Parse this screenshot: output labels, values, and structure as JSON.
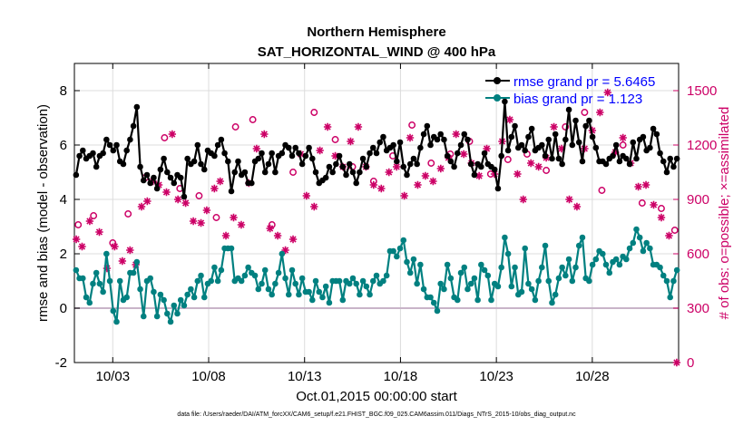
{
  "chart_data": {
    "type": "line",
    "title": "Northern Hemisphere",
    "subtitle": "SAT_HORIZONTAL_WIND @ 400 hPa",
    "xlabel": "Oct.01,2015 00:00:00 start",
    "ylabel": "rmse and bias (model - observation)",
    "y2label": "# of obs: o=possible; ×=assimilated",
    "footnote": "data file: /Users/raeder/DAI/ATM_forcXX/CAM6_setup/f.e21.FHIST_BGC.f09_025.CAM6assim.011/Diags_NTrS_2015-10/obs_diag_output.nc",
    "xlim": [
      1,
      32.5
    ],
    "ylim": [
      -2,
      9
    ],
    "y2lim": [
      0,
      1650
    ],
    "x_ticks": [
      3,
      8,
      13,
      18,
      23,
      28
    ],
    "x_tick_labels": [
      "10/03",
      "10/08",
      "10/13",
      "10/18",
      "10/23",
      "10/28"
    ],
    "y_ticks": [
      -2,
      0,
      2,
      4,
      6,
      8
    ],
    "y2_ticks": [
      0,
      300,
      600,
      900,
      1200,
      1500
    ],
    "legend_position": "top-right",
    "colors": {
      "rmse": "#000000",
      "bias": "#008080",
      "obs": "#cc0066",
      "legend_text": "#0000ff",
      "zero_line": "#c8b4c8"
    },
    "series": [
      {
        "name": "rmse grand pr = 5.6465",
        "axis": "left",
        "color": "#000000",
        "values": [
          4.9,
          5.6,
          5.8,
          5.5,
          5.6,
          5.7,
          5.2,
          5.6,
          5.7,
          6.2,
          6.0,
          5.8,
          6.0,
          5.4,
          5.3,
          5.8,
          6.2,
          6.7,
          7.4,
          5.2,
          4.7,
          4.9,
          4.6,
          4.8,
          4.4,
          5.1,
          5.5,
          5.0,
          4.8,
          4.6,
          4.9,
          4.8,
          4.1,
          5.5,
          5.3,
          5.4,
          6.0,
          5.3,
          5.1,
          5.8,
          5.7,
          5.6,
          6.0,
          6.2,
          5.7,
          5.4,
          4.3,
          5.0,
          5.4,
          4.9,
          5.0,
          4.6,
          4.6,
          5.4,
          5.5,
          5.7,
          5.0,
          5.3,
          5.7,
          5.0,
          5.6,
          5.7,
          6.0,
          5.9,
          5.6,
          5.9,
          5.7,
          5.3,
          5.6,
          5.9,
          5.5,
          5.0,
          4.6,
          4.7,
          4.8,
          5.2,
          5.0,
          5.3,
          5.6,
          5.2,
          4.9,
          5.3,
          5.0,
          4.6,
          5.0,
          5.5,
          5.2,
          5.7,
          5.9,
          5.7,
          6.1,
          6.3,
          5.8,
          5.9,
          6.0,
          5.4,
          6.1,
          5.2,
          4.9,
          5.3,
          5.5,
          5.3,
          5.9,
          6.4,
          6.7,
          6.0,
          6.3,
          6.2,
          6.4,
          6.2,
          5.6,
          5.4,
          5.2,
          5.7,
          6.0,
          6.4,
          6.2,
          5.3,
          4.9,
          5.3,
          5.2,
          5.7,
          5.3,
          5.2,
          5.1,
          4.4,
          5.6,
          7.6,
          5.8,
          6.3,
          6.7,
          5.9,
          6.0,
          5.8,
          6.3,
          6.6,
          5.8,
          5.9,
          6.0,
          5.6,
          6.2,
          5.5,
          6.4,
          5.5,
          5.3,
          6.2,
          7.3,
          6.0,
          6.9,
          6.1,
          5.4,
          6.7,
          6.9,
          6.3,
          5.9,
          5.4,
          5.4,
          5.3,
          5.5,
          5.6,
          6.0,
          5.4,
          5.6,
          5.5,
          5.3,
          6.1,
          5.5,
          6.2,
          6.3,
          5.8,
          5.9,
          6.6,
          6.4,
          5.7,
          5.4,
          5.0,
          5.5,
          5.2,
          5.5
        ]
      },
      {
        "name": "bias grand pr = 1.123",
        "axis": "left",
        "color": "#008080",
        "values": [
          1.4,
          1.1,
          1.1,
          0.4,
          0.2,
          0.9,
          1.3,
          0.9,
          0.6,
          2.0,
          1.0,
          -0.1,
          -0.5,
          1.0,
          0.3,
          0.4,
          1.3,
          1.3,
          1.7,
          0.7,
          -0.3,
          1.0,
          1.1,
          0.6,
          -0.3,
          0.5,
          0.3,
          -0.2,
          -0.5,
          0.1,
          -0.2,
          0.3,
          0.1,
          0.5,
          0.7,
          0.4,
          1.0,
          1.2,
          0.4,
          0.9,
          1.0,
          1.5,
          1.0,
          1.4,
          2.2,
          2.2,
          2.2,
          1.0,
          1.1,
          1.0,
          1.2,
          1.5,
          1.3,
          1.2,
          0.7,
          0.9,
          1.4,
          0.7,
          0.5,
          0.9,
          1.3,
          2.0,
          1.1,
          0.5,
          1.4,
          0.9,
          0.5,
          1.1,
          0.6,
          0.6,
          0.3,
          1.0,
          0.6,
          0.4,
          0.8,
          0.2,
          1.0,
          1.0,
          1.0,
          0.3,
          1.0,
          0.9,
          1.1,
          0.9,
          0.5,
          1.0,
          0.8,
          0.5,
          1.0,
          1.2,
          0.9,
          1.0,
          1.2,
          2.1,
          2.1,
          1.9,
          2.2,
          2.5,
          1.7,
          1.3,
          1.8,
          0.9,
          1.6,
          0.7,
          0.4,
          0.4,
          0.2,
          -0.1,
          0.9,
          0.7,
          1.6,
          1.1,
          0.4,
          0.3,
          1.3,
          1.5,
          0.7,
          0.9,
          1.1,
          0.3,
          1.6,
          1.4,
          1.2,
          0.3,
          0.9,
          0.8,
          1.5,
          2.6,
          2.0,
          0.8,
          1.5,
          0.5,
          0.6,
          2.2,
          0.9,
          0.7,
          0.3,
          1.0,
          1.5,
          2.3,
          1.0,
          0.2,
          0.5,
          1.1,
          1.5,
          1.2,
          1.8,
          1.0,
          1.5,
          2.3,
          2.6,
          1.1,
          1.0,
          1.6,
          1.8,
          2.1,
          2.0,
          1.6,
          1.3,
          1.7,
          1.8,
          1.6,
          1.9,
          1.8,
          2.2,
          2.4,
          2.9,
          2.6,
          2.1,
          2.4,
          2.2,
          1.6,
          1.6,
          1.5,
          1.2,
          1.0,
          0.4,
          1.0,
          1.4
        ]
      },
      {
        "name": "possible",
        "axis": "right",
        "marker": "o",
        "color": "#cc0066",
        "x": [
          1.2,
          2.0,
          3.0,
          3.8,
          4.7,
          5.7,
          6.5,
          7.5,
          8.4,
          9.4,
          10.3,
          11.3,
          12.4,
          13.5,
          14.6,
          15.5,
          16.6,
          17.6,
          18.6,
          19.6,
          20.6,
          21.6,
          22.7,
          23.6,
          24.6,
          25.6,
          26.6,
          27.6,
          28.5,
          29.6,
          30.6,
          31.6,
          32.3
        ],
        "values": [
          760,
          810,
          660,
          820,
          1020,
          1240,
          960,
          920,
          800,
          1300,
          1340,
          760,
          1050,
          1380,
          1230,
          1080,
          1000,
          1140,
          1310,
          1100,
          1150,
          1220,
          1040,
          1120,
          1150,
          1060,
          1300,
          1380,
          950,
          1200,
          880,
          850,
          730
        ]
      },
      {
        "name": "assimilated",
        "axis": "right",
        "marker": "*",
        "color": "#cc0066",
        "x": [
          1.1,
          1.4,
          1.8,
          2.3,
          2.7,
          3.1,
          3.5,
          3.9,
          4.2,
          4.5,
          4.8,
          5.1,
          5.4,
          5.8,
          6.1,
          6.4,
          6.8,
          7.2,
          7.6,
          7.9,
          8.3,
          8.6,
          8.9,
          9.3,
          9.7,
          10.1,
          10.5,
          10.9,
          11.2,
          11.6,
          12.0,
          12.4,
          12.8,
          13.1,
          13.5,
          13.8,
          14.2,
          14.6,
          15.0,
          15.4,
          15.8,
          16.2,
          16.6,
          17.0,
          17.4,
          17.8,
          18.2,
          18.5,
          18.9,
          19.3,
          19.7,
          20.1,
          20.5,
          20.9,
          21.3,
          21.7,
          22.1,
          22.5,
          22.9,
          23.3,
          23.7,
          24.1,
          24.4,
          24.8,
          25.2,
          25.6,
          26.0,
          26.4,
          26.8,
          27.2,
          27.6,
          28.0,
          28.4,
          28.8,
          29.2,
          29.6,
          30.0,
          30.4,
          30.8,
          31.2,
          31.6,
          32.0
        ],
        "values": [
          680,
          640,
          780,
          720,
          520,
          640,
          560,
          620,
          540,
          860,
          890,
          1000,
          980,
          940,
          1260,
          900,
          880,
          780,
          770,
          840,
          960,
          1000,
          700,
          800,
          760,
          990,
          1180,
          1260,
          740,
          700,
          620,
          680,
          1150,
          920,
          860,
          1170,
          1300,
          1140,
          1080,
          1220,
          1300,
          1080,
          980,
          960,
          1050,
          1080,
          920,
          1240,
          980,
          1030,
          1000,
          1070,
          1130,
          1260,
          1150,
          1100,
          1030,
          1180,
          1040,
          1220,
          1340,
          1040,
          900,
          1100,
          1080,
          1130,
          1300,
          1180,
          900,
          860,
          1180,
          1280,
          1380,
          1490,
          1160,
          1240,
          1100,
          970,
          980,
          870,
          800,
          700
        ]
      },
      {
        "name": "last-bin assimilated",
        "axis": "right",
        "marker": "*",
        "color": "#cc0066",
        "x": [
          32.4
        ],
        "values": [
          0
        ]
      }
    ]
  }
}
